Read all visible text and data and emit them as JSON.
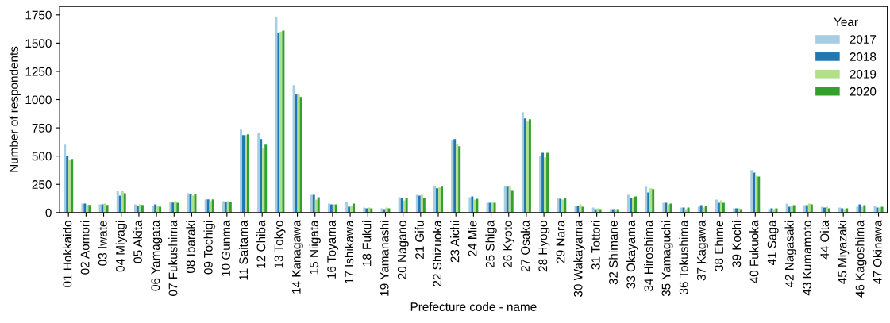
{
  "chart_data": {
    "type": "bar",
    "xlabel": "Prefecture code - name",
    "ylabel": "Number of respondents",
    "categories": [
      "01 Hokkaido",
      "02 Aomori",
      "03 Iwate",
      "04 Miyagi",
      "05 Akita",
      "06 Yamagata",
      "07 Fukushima",
      "08 Ibaraki",
      "09 Tochigi",
      "10 Gunma",
      "11 Saitama",
      "12 Chiba",
      "13 Tokyo",
      "14 Kanagawa",
      "15 Niigata",
      "16 Toyama",
      "17 Ishikawa",
      "18 Fukui",
      "19 Yamanashi",
      "20 Nagano",
      "21 Gifu",
      "22 Shizuoka",
      "23 Aichi",
      "24 Mie",
      "25 Shiga",
      "26 Kyoto",
      "27 Osaka",
      "28 Hyogo",
      "29 Nara",
      "30 Wakayama",
      "31 Tottori",
      "32 Shimane",
      "33 Okayama",
      "34 Hiroshima",
      "35 Yamaguchi",
      "36 Tokushima",
      "37 Kagawa",
      "38 Ehime",
      "39 Kochi",
      "40 Fukuoka",
      "41 Saga",
      "42 Nagasaki",
      "43 Kumamoto",
      "44 Oita",
      "45 Miyazaki",
      "46 Kagoshima",
      "47 Okinawa"
    ],
    "legend_title": "Year",
    "legend": "top right",
    "grid": false,
    "ylim": [
      0,
      1825
    ],
    "yticks": [
      0,
      250,
      500,
      750,
      1000,
      1250,
      1500,
      1750
    ],
    "series": [
      {
        "name": "2017",
        "color": "#a6cee3",
        "values": [
          601,
          80,
          73,
          188,
          73,
          59,
          94,
          171,
          117,
          101,
          735,
          706,
          1737,
          1129,
          157,
          80,
          94,
          45,
          38,
          136,
          157,
          235,
          636,
          136,
          87,
          235,
          890,
          502,
          129,
          59,
          45,
          31,
          157,
          228,
          87,
          45,
          52,
          115,
          38,
          376,
          31,
          80,
          66,
          52,
          45,
          52,
          59
        ]
      },
      {
        "name": "2018",
        "color": "#1f78b4",
        "values": [
          502,
          80,
          73,
          150,
          59,
          73,
          89,
          164,
          117,
          96,
          685,
          650,
          1589,
          1051,
          157,
          73,
          52,
          38,
          31,
          129,
          150,
          214,
          650,
          143,
          87,
          228,
          833,
          530,
          122,
          59,
          31,
          31,
          129,
          178,
          87,
          45,
          66,
          87,
          38,
          354,
          38,
          52,
          66,
          45,
          38,
          73,
          45
        ]
      },
      {
        "name": "2019",
        "color": "#b2df8a",
        "values": [
          467,
          68,
          80,
          188,
          73,
          59,
          101,
          150,
          103,
          101,
          685,
          566,
          1603,
          1051,
          115,
          73,
          61,
          45,
          45,
          108,
          157,
          221,
          608,
          115,
          87,
          228,
          805,
          488,
          115,
          73,
          38,
          31,
          129,
          214,
          73,
          31,
          45,
          108,
          38,
          326,
          31,
          59,
          80,
          52,
          31,
          52,
          45
        ]
      },
      {
        "name": "2020",
        "color": "#33a02c",
        "values": [
          474,
          68,
          68,
          171,
          68,
          52,
          87,
          164,
          117,
          94,
          692,
          601,
          1612,
          1023,
          136,
          73,
          80,
          38,
          38,
          129,
          129,
          228,
          587,
          122,
          87,
          192,
          826,
          530,
          129,
          52,
          31,
          31,
          143,
          207,
          80,
          45,
          59,
          87,
          31,
          319,
          38,
          66,
          73,
          38,
          38,
          66,
          52
        ]
      }
    ]
  }
}
